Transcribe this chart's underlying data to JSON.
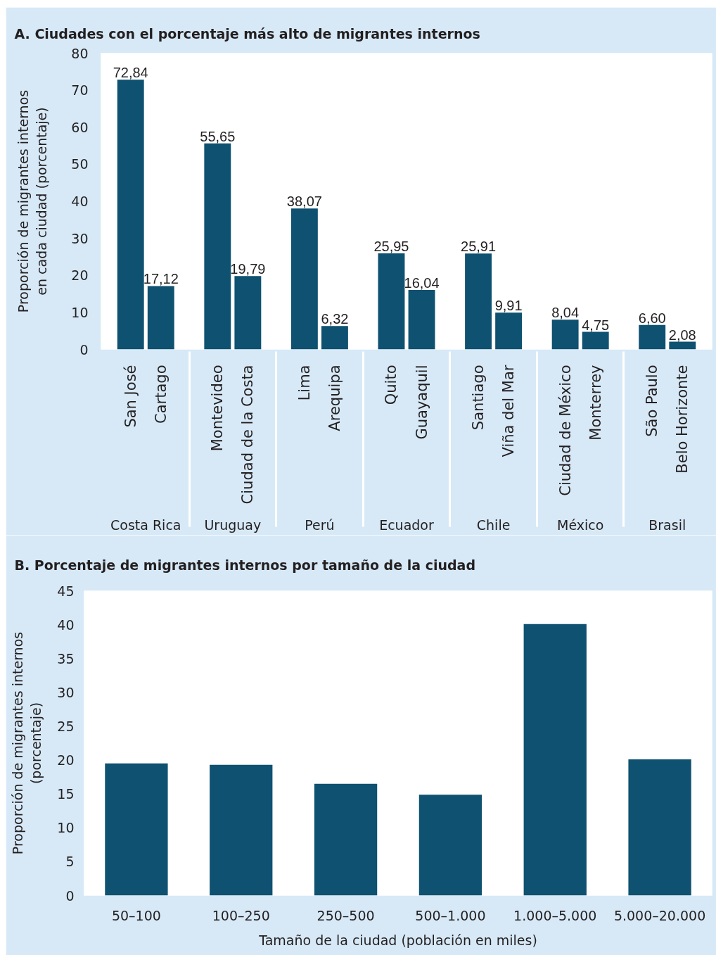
{
  "chart_data": [
    {
      "type": "bar",
      "title": "A. Ciudades con el porcentaje más alto de migrantes internos",
      "ylabel": "Proporción de migrantes internos\nen cada ciudad (porcentaje)",
      "categories": [
        "San José",
        "Cartago",
        "Montevideo",
        "Ciudad de la Costa",
        "Lima",
        "Arequipa",
        "Quito",
        "Guayaquil",
        "Santiago",
        "Viña del Mar",
        "Ciudad de México",
        "Monterrey",
        "São Paulo",
        "Belo Horizonte"
      ],
      "annotations": [
        "Costa Rica",
        "Uruguay",
        "Perú",
        "Ecuador",
        "Chile",
        "México",
        "Brasil"
      ],
      "values": [
        72.84,
        17.12,
        55.65,
        19.79,
        38.07,
        6.32,
        25.95,
        16.04,
        25.91,
        9.91,
        8.04,
        4.75,
        6.6,
        2.08
      ],
      "value_labels": [
        "72,84",
        "17,12",
        "55,65",
        "19,79",
        "38,07",
        "6,32",
        "25,95",
        "16,04",
        "25,91",
        "9,91",
        "8,04",
        "4,75",
        "6,60",
        "2,08"
      ],
      "color": "#0e5170",
      "ylim": [
        0,
        80
      ],
      "yticks": [
        0,
        10,
        20,
        30,
        40,
        50,
        60,
        70,
        80
      ],
      "grid": false
    },
    {
      "type": "bar",
      "title": "B. Porcentaje de migrantes internos por tamaño de la ciudad",
      "xlabel": "Tamaño de la ciudad (población en miles)",
      "ylabel": "Proporción de migrantes internos\n(porcentaje)",
      "categories": [
        "50–100",
        "100–250",
        "250–500",
        "500–1.000",
        "1.000–5.000",
        "5.000–20.000"
      ],
      "values": [
        19.5,
        19.3,
        16.5,
        14.9,
        40.1,
        20.1
      ],
      "color": "#0e5170",
      "ylim": [
        0,
        45
      ],
      "yticks": [
        0,
        5,
        10,
        15,
        20,
        25,
        30,
        35,
        40,
        45
      ],
      "grid": false
    }
  ]
}
